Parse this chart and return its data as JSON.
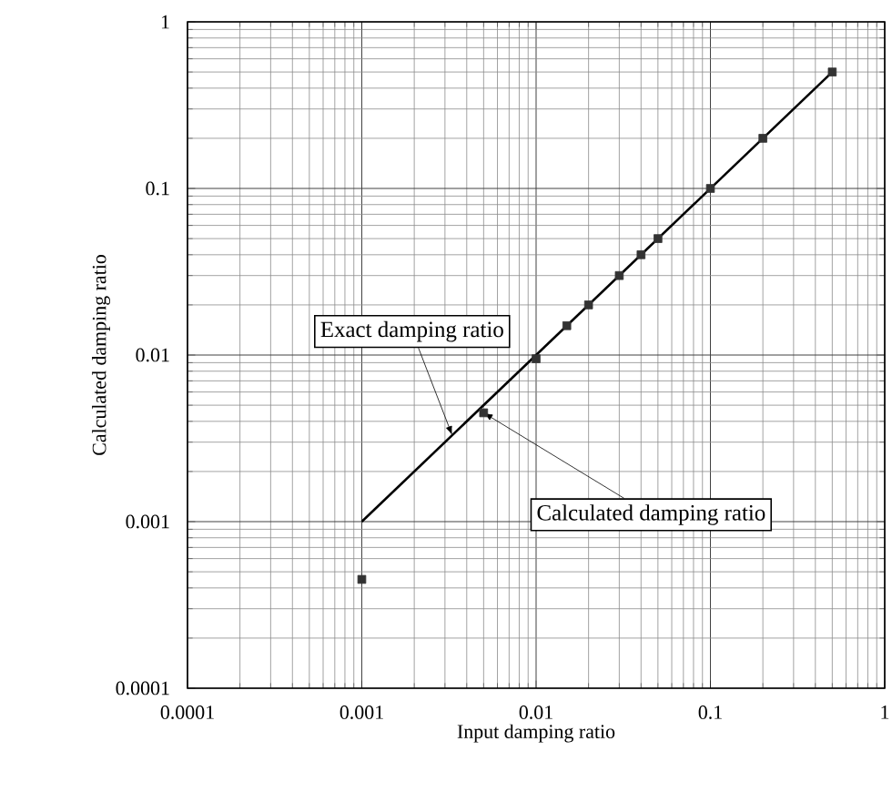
{
  "chart_data": {
    "type": "scatter",
    "xlabel": "Input damping ratio",
    "ylabel": "Calculated damping ratio",
    "log": "xy",
    "grid": true,
    "marker": "square",
    "xlim": [
      0.0001,
      1
    ],
    "ylim": [
      0.0001,
      1
    ],
    "xticks": [
      0.0001,
      0.001,
      0.01,
      0.1,
      1
    ],
    "yticks": [
      0.0001,
      0.001,
      0.01,
      0.1,
      1
    ],
    "series": [
      {
        "type": "line",
        "color": "#000000",
        "marker": "none",
        "line_style": "solid",
        "x": [
          0.001,
          0.5
        ],
        "values": [
          0.001,
          0.5
        ]
      },
      {
        "color": "#333333",
        "x": [
          0.001,
          0.005,
          0.01,
          0.015,
          0.02,
          0.03,
          0.04,
          0.05,
          0.1,
          0.2,
          0.5
        ],
        "values": [
          0.00045,
          0.0045,
          0.0095,
          0.015,
          0.02,
          0.03,
          0.04,
          0.05,
          0.1,
          0.2,
          0.5
        ]
      }
    ],
    "annotations": [
      {
        "text": "Exact damping ratio",
        "x": 0.0033,
        "y": 0.0033
      },
      {
        "text": "Calculated damping ratio",
        "x": 0.005,
        "y": 0.0045
      }
    ]
  }
}
